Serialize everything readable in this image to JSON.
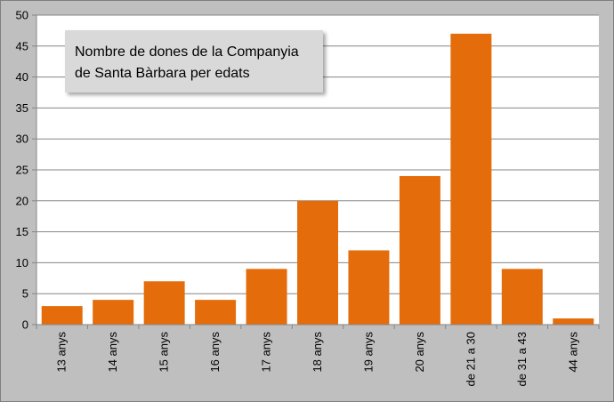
{
  "chart_data": {
    "type": "bar",
    "title_lines": [
      "Nombre de dones de la Companyia",
      "de Santa Bàrbara per edats"
    ],
    "categories": [
      "13 anys",
      "14 anys",
      "15 anys",
      "16 anys",
      "17 anys",
      "18 anys",
      "19 anys",
      "20 anys",
      "de 21 a 30",
      "de 31 a 43",
      "44 anys"
    ],
    "values": [
      3,
      4,
      7,
      4,
      9,
      20,
      12,
      24,
      47,
      9,
      1
    ],
    "ylim": [
      0,
      50
    ],
    "yticks": [
      0,
      5,
      10,
      15,
      20,
      25,
      30,
      35,
      40,
      45,
      50
    ],
    "grid": true,
    "legend": "none",
    "bar_color": "#e46c0a",
    "plot_bg": "#ffffff",
    "grid_color": "#868686"
  }
}
